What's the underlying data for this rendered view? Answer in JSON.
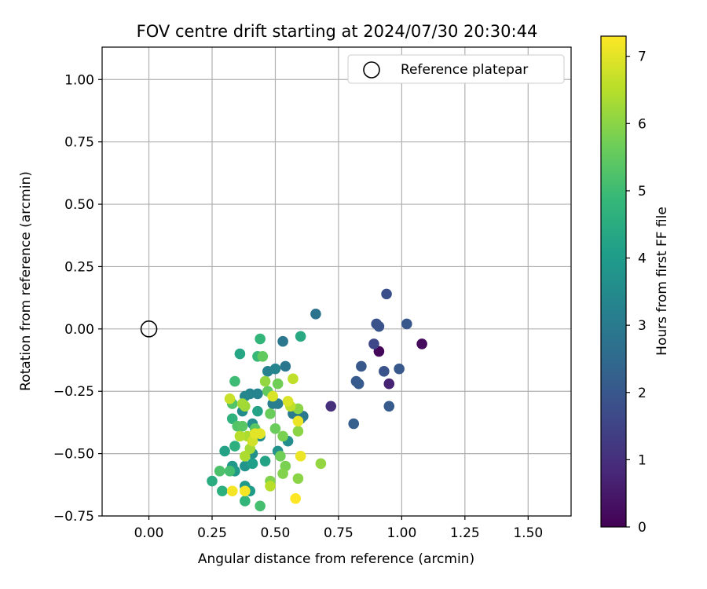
{
  "chart_data": {
    "type": "scatter",
    "title": "FOV centre drift starting at 2024/07/30 20:30:44",
    "xlabel": "Angular distance from reference (arcmin)",
    "ylabel": "Rotation from reference (arcmin)",
    "xlim": [
      -0.185,
      1.67
    ],
    "ylim": [
      -0.75,
      1.13
    ],
    "xticks": [
      "0.00",
      "0.25",
      "0.50",
      "0.75",
      "1.00",
      "1.25",
      "1.50"
    ],
    "yticks": [
      "1.00",
      "0.75",
      "0.50",
      "0.25",
      "0.00",
      "−0.25",
      "−0.50",
      "−0.75"
    ],
    "grid": true,
    "legend": {
      "position": "top-right",
      "entries": [
        {
          "label": "Reference platepar",
          "marker": "open-circle"
        }
      ]
    },
    "reference_point": {
      "x": 0.0,
      "y": 0.0
    },
    "colorbar": {
      "label": "Hours from first FF file",
      "colormap": "viridis",
      "range": [
        0,
        7.3
      ],
      "ticks": [
        "0",
        "1",
        "2",
        "3",
        "4",
        "5",
        "6",
        "7"
      ]
    },
    "colors": {
      "viridis": [
        "#440154",
        "#482878",
        "#3e4989",
        "#31688e",
        "#26828e",
        "#1f9e89",
        "#35b779",
        "#6ece58",
        "#b5de2b",
        "#fde725"
      ]
    },
    "points": [
      {
        "x": 0.91,
        "y": -0.09,
        "h": 0.1
      },
      {
        "x": 1.08,
        "y": -0.06,
        "h": 0.2
      },
      {
        "x": 0.95,
        "y": -0.22,
        "h": 0.7
      },
      {
        "x": 0.72,
        "y": -0.31,
        "h": 1.0
      },
      {
        "x": 0.89,
        "y": -0.06,
        "h": 1.6
      },
      {
        "x": 0.94,
        "y": 0.14,
        "h": 1.8
      },
      {
        "x": 0.9,
        "y": 0.02,
        "h": 1.9
      },
      {
        "x": 0.91,
        "y": 0.01,
        "h": 1.9
      },
      {
        "x": 0.84,
        "y": -0.15,
        "h": 2.0
      },
      {
        "x": 0.93,
        "y": -0.17,
        "h": 1.9
      },
      {
        "x": 0.99,
        "y": -0.16,
        "h": 2.0
      },
      {
        "x": 1.02,
        "y": 0.02,
        "h": 2.0
      },
      {
        "x": 0.82,
        "y": -0.21,
        "h": 2.1
      },
      {
        "x": 0.83,
        "y": -0.22,
        "h": 2.1
      },
      {
        "x": 0.95,
        "y": -0.31,
        "h": 2.1
      },
      {
        "x": 0.81,
        "y": -0.38,
        "h": 2.2
      },
      {
        "x": 0.66,
        "y": 0.06,
        "h": 2.8
      },
      {
        "x": 0.53,
        "y": -0.05,
        "h": 2.9
      },
      {
        "x": 0.54,
        "y": -0.15,
        "h": 2.9
      },
      {
        "x": 0.61,
        "y": -0.35,
        "h": 2.9
      },
      {
        "x": 0.6,
        "y": -0.36,
        "h": 3.0
      },
      {
        "x": 0.57,
        "y": -0.34,
        "h": 3.0
      },
      {
        "x": 0.51,
        "y": -0.3,
        "h": 3.1
      },
      {
        "x": 0.49,
        "y": -0.3,
        "h": 3.1
      },
      {
        "x": 0.47,
        "y": -0.17,
        "h": 3.2
      },
      {
        "x": 0.5,
        "y": -0.16,
        "h": 3.3
      },
      {
        "x": 0.43,
        "y": -0.26,
        "h": 3.3
      },
      {
        "x": 0.4,
        "y": -0.26,
        "h": 3.3
      },
      {
        "x": 0.38,
        "y": -0.27,
        "h": 3.4
      },
      {
        "x": 0.37,
        "y": -0.33,
        "h": 3.5
      },
      {
        "x": 0.41,
        "y": -0.38,
        "h": 3.6
      },
      {
        "x": 0.44,
        "y": -0.43,
        "h": 3.6
      },
      {
        "x": 0.55,
        "y": -0.45,
        "h": 3.6
      },
      {
        "x": 0.51,
        "y": -0.49,
        "h": 3.7
      },
      {
        "x": 0.41,
        "y": -0.5,
        "h": 3.7
      },
      {
        "x": 0.38,
        "y": -0.55,
        "h": 3.8
      },
      {
        "x": 0.33,
        "y": -0.55,
        "h": 3.9
      },
      {
        "x": 0.34,
        "y": -0.57,
        "h": 3.9
      },
      {
        "x": 0.38,
        "y": -0.63,
        "h": 3.9
      },
      {
        "x": 0.4,
        "y": -0.65,
        "h": 4.0
      },
      {
        "x": 0.41,
        "y": -0.54,
        "h": 4.1
      },
      {
        "x": 0.3,
        "y": -0.49,
        "h": 4.2
      },
      {
        "x": 0.46,
        "y": -0.53,
        "h": 4.2
      },
      {
        "x": 0.43,
        "y": -0.33,
        "h": 4.2
      },
      {
        "x": 0.36,
        "y": -0.1,
        "h": 4.3
      },
      {
        "x": 0.6,
        "y": -0.03,
        "h": 4.4
      },
      {
        "x": 0.25,
        "y": -0.61,
        "h": 4.5
      },
      {
        "x": 0.29,
        "y": -0.65,
        "h": 4.6
      },
      {
        "x": 0.34,
        "y": -0.47,
        "h": 4.6
      },
      {
        "x": 0.33,
        "y": -0.36,
        "h": 4.7
      },
      {
        "x": 0.38,
        "y": -0.69,
        "h": 4.8
      },
      {
        "x": 0.44,
        "y": -0.04,
        "h": 4.8
      },
      {
        "x": 0.43,
        "y": -0.11,
        "h": 4.9
      },
      {
        "x": 0.34,
        "y": -0.21,
        "h": 5.0
      },
      {
        "x": 0.44,
        "y": -0.71,
        "h": 5.1
      },
      {
        "x": 0.32,
        "y": -0.57,
        "h": 5.1
      },
      {
        "x": 0.28,
        "y": -0.57,
        "h": 5.2
      },
      {
        "x": 0.33,
        "y": -0.3,
        "h": 5.3
      },
      {
        "x": 0.35,
        "y": -0.39,
        "h": 5.3
      },
      {
        "x": 0.37,
        "y": -0.39,
        "h": 5.4
      },
      {
        "x": 0.42,
        "y": -0.4,
        "h": 5.4
      },
      {
        "x": 0.45,
        "y": -0.11,
        "h": 5.5
      },
      {
        "x": 0.47,
        "y": -0.25,
        "h": 5.5
      },
      {
        "x": 0.48,
        "y": -0.34,
        "h": 5.6
      },
      {
        "x": 0.5,
        "y": -0.4,
        "h": 5.6
      },
      {
        "x": 0.51,
        "y": -0.22,
        "h": 5.7
      },
      {
        "x": 0.52,
        "y": -0.51,
        "h": 5.7
      },
      {
        "x": 0.53,
        "y": -0.43,
        "h": 5.8
      },
      {
        "x": 0.54,
        "y": -0.55,
        "h": 5.8
      },
      {
        "x": 0.53,
        "y": -0.58,
        "h": 5.9
      },
      {
        "x": 0.48,
        "y": -0.61,
        "h": 5.9
      },
      {
        "x": 0.59,
        "y": -0.32,
        "h": 6.0
      },
      {
        "x": 0.59,
        "y": -0.41,
        "h": 6.0
      },
      {
        "x": 0.59,
        "y": -0.6,
        "h": 6.0
      },
      {
        "x": 0.68,
        "y": -0.54,
        "h": 6.1
      },
      {
        "x": 0.46,
        "y": -0.21,
        "h": 6.1
      },
      {
        "x": 0.38,
        "y": -0.31,
        "h": 6.2
      },
      {
        "x": 0.37,
        "y": -0.3,
        "h": 6.3
      },
      {
        "x": 0.4,
        "y": -0.48,
        "h": 6.3
      },
      {
        "x": 0.38,
        "y": -0.51,
        "h": 6.4
      },
      {
        "x": 0.39,
        "y": -0.43,
        "h": 6.4
      },
      {
        "x": 0.36,
        "y": -0.43,
        "h": 6.5
      },
      {
        "x": 0.48,
        "y": -0.63,
        "h": 6.5
      },
      {
        "x": 0.56,
        "y": -0.31,
        "h": 6.6
      },
      {
        "x": 0.57,
        "y": -0.2,
        "h": 6.6
      },
      {
        "x": 0.32,
        "y": -0.28,
        "h": 6.7
      },
      {
        "x": 0.41,
        "y": -0.45,
        "h": 6.8
      },
      {
        "x": 0.55,
        "y": -0.29,
        "h": 6.9
      },
      {
        "x": 0.49,
        "y": -0.27,
        "h": 6.9
      },
      {
        "x": 0.42,
        "y": -0.42,
        "h": 7.0
      },
      {
        "x": 0.44,
        "y": -0.42,
        "h": 7.0
      },
      {
        "x": 0.6,
        "y": -0.51,
        "h": 7.1
      },
      {
        "x": 0.59,
        "y": -0.37,
        "h": 7.1
      },
      {
        "x": 0.38,
        "y": -0.65,
        "h": 7.2
      },
      {
        "x": 0.33,
        "y": -0.65,
        "h": 7.2
      },
      {
        "x": 0.58,
        "y": -0.68,
        "h": 7.3
      }
    ]
  }
}
